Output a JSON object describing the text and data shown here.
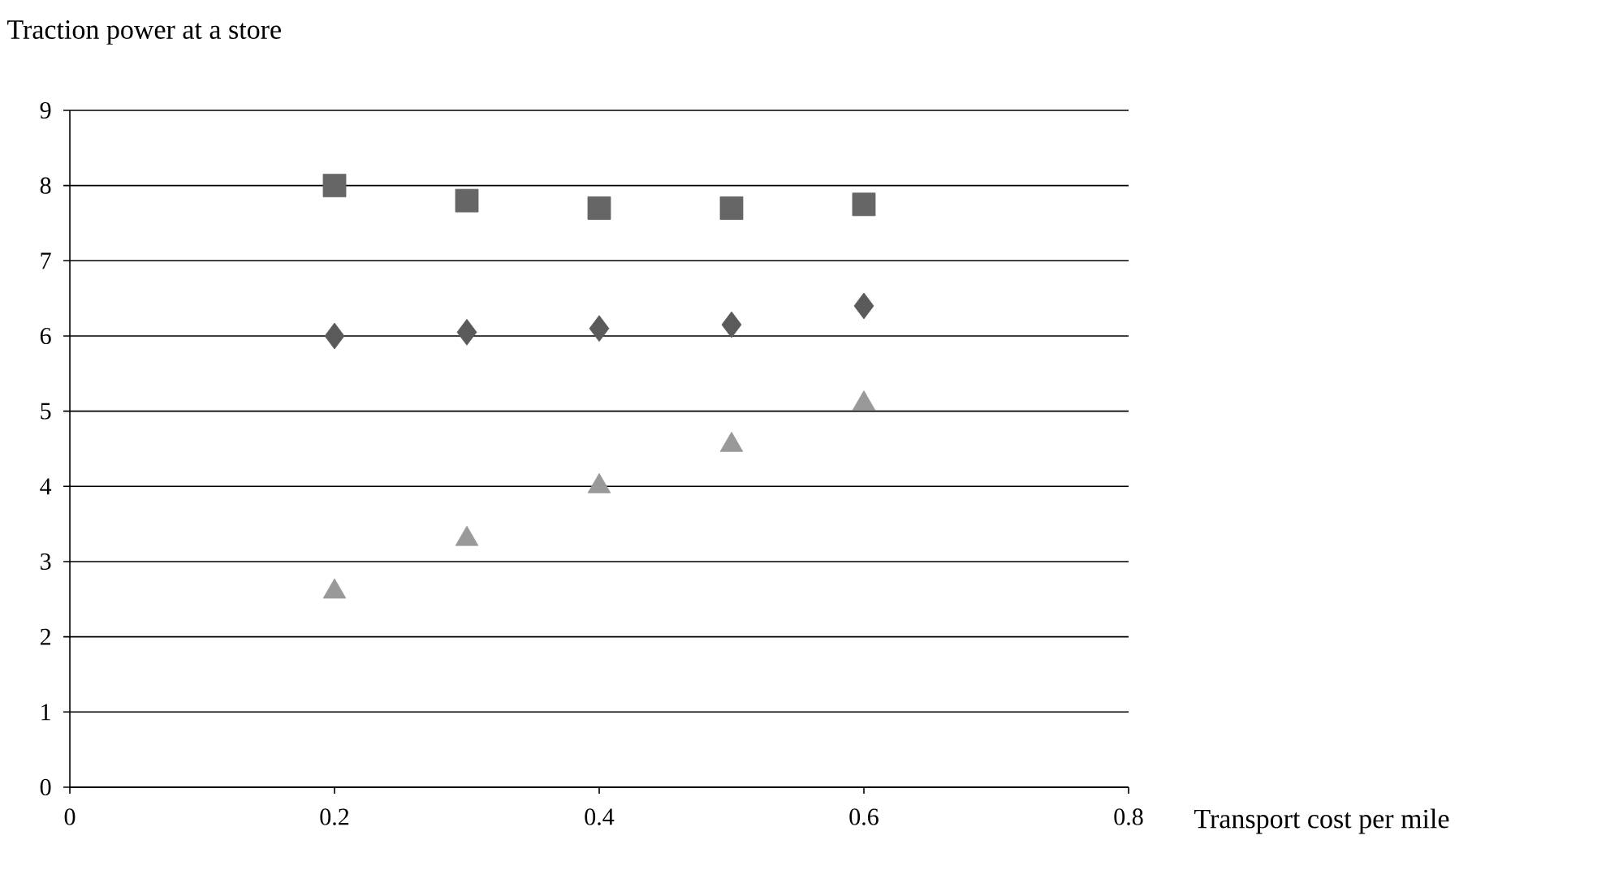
{
  "chart_data": {
    "type": "scatter",
    "title": "Traction power at a store",
    "xlabel": "Transport cost per mile",
    "x": [
      0.2,
      0.3,
      0.4,
      0.5,
      0.6
    ],
    "series": [
      {
        "color": "#666666",
        "marker": "square",
        "values": [
          8.0,
          7.8,
          7.7,
          7.7,
          7.75
        ]
      },
      {
        "color": "#5a5a5a",
        "marker": "diamond",
        "values": [
          6.0,
          6.05,
          6.1,
          6.15,
          6.4
        ]
      },
      {
        "color": "#999999",
        "marker": "triangle",
        "values": [
          2.6,
          3.3,
          4.0,
          4.55,
          5.1
        ]
      }
    ],
    "xlim": [
      0,
      0.8
    ],
    "xticks": [
      0,
      0.2,
      0.4,
      0.6,
      0.8
    ],
    "ylim": [
      0,
      9
    ],
    "yticks": [
      0,
      1,
      2,
      3,
      4,
      5,
      6,
      7,
      8,
      9
    ],
    "grid": "y"
  }
}
